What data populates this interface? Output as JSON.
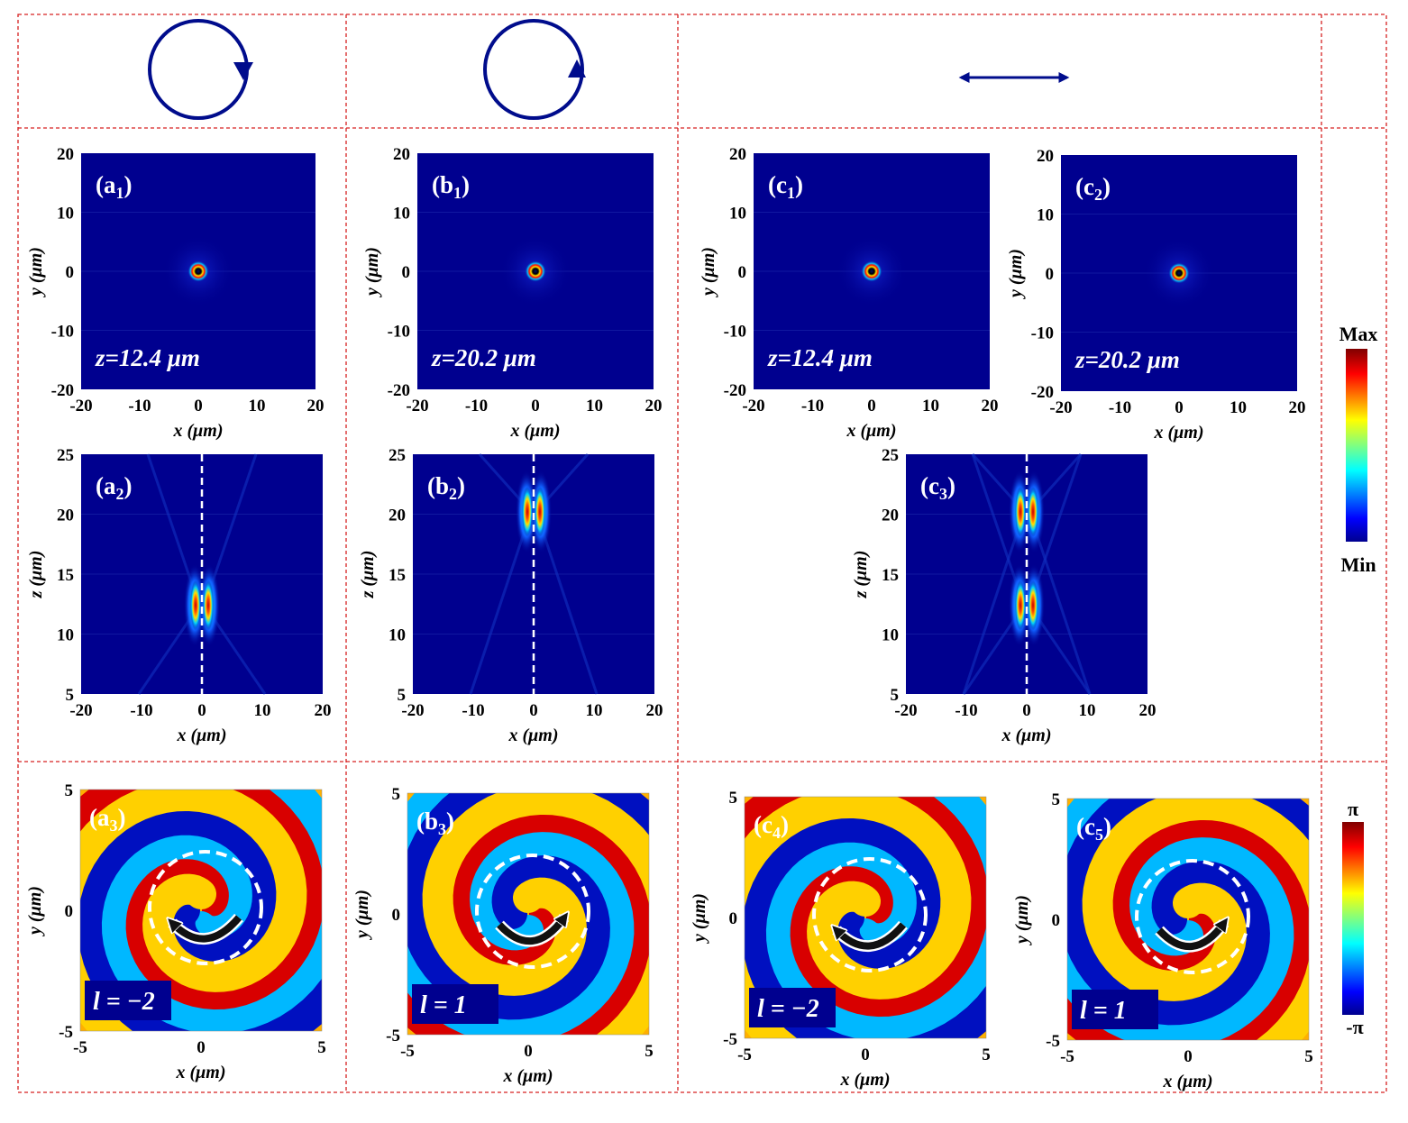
{
  "figure": {
    "column_headers": [
      {
        "polarization": "circular",
        "icon": "circle-arrow-down-icon"
      },
      {
        "polarization": "circular",
        "icon": "circle-arrow-up-icon"
      },
      {
        "polarization": "linear-x",
        "icon": "double-arrow-horizontal-icon"
      }
    ],
    "colors": {
      "border": "#d62020",
      "panel_bg": "#00008f",
      "polarization_icon": "#000c8c",
      "beam_guide": "#ffffff"
    }
  },
  "chart_data": [
    {
      "id": "a1",
      "type": "heatmap",
      "quantity": "intensity",
      "label_main": "(a",
      "label_sub": "1",
      "label_close": ")",
      "annotation": "z=12.4 μm",
      "xlabel": "x (μm)",
      "ylabel": "y (μm)",
      "xlim": [
        -20,
        20
      ],
      "ylim": [
        -20,
        20
      ],
      "xticks": [
        "-20",
        "-10",
        "0",
        "10",
        "20"
      ],
      "yticks": [
        "20",
        "10",
        "0",
        "-10",
        "-20"
      ],
      "features": [
        {
          "kind": "focal-ring",
          "x": 0,
          "y": 0
        }
      ]
    },
    {
      "id": "b1",
      "type": "heatmap",
      "quantity": "intensity",
      "label_main": "(b",
      "label_sub": "1",
      "label_close": ")",
      "annotation": "z=20.2 μm",
      "xlabel": "x (μm)",
      "ylabel": "y (μm)",
      "xlim": [
        -20,
        20
      ],
      "ylim": [
        -20,
        20
      ],
      "xticks": [
        "-20",
        "-10",
        "0",
        "10",
        "20"
      ],
      "yticks": [
        "20",
        "10",
        "0",
        "-10",
        "-20"
      ],
      "features": [
        {
          "kind": "focal-ring",
          "x": 0,
          "y": 0
        }
      ]
    },
    {
      "id": "c1",
      "type": "heatmap",
      "quantity": "intensity",
      "label_main": "(c",
      "label_sub": "1",
      "label_close": ")",
      "annotation": "z=12.4 μm",
      "xlabel": "x (μm)",
      "ylabel": "y (μm)",
      "xlim": [
        -20,
        20
      ],
      "ylim": [
        -20,
        20
      ],
      "xticks": [
        "-20",
        "-10",
        "0",
        "10",
        "20"
      ],
      "yticks": [
        "20",
        "10",
        "0",
        "-10",
        "-20"
      ],
      "features": [
        {
          "kind": "focal-ring",
          "x": 0,
          "y": 0
        }
      ]
    },
    {
      "id": "c2",
      "type": "heatmap",
      "quantity": "intensity",
      "label_main": "(c",
      "label_sub": "2",
      "label_close": ")",
      "annotation": "z=20.2 μm",
      "xlabel": "x (μm)",
      "ylabel": "y (μm)",
      "xlim": [
        -20,
        20
      ],
      "ylim": [
        -20,
        20
      ],
      "xticks": [
        "-20",
        "-10",
        "0",
        "10",
        "20"
      ],
      "yticks": [
        "20",
        "10",
        "0",
        "-10",
        "-20"
      ],
      "features": [
        {
          "kind": "focal-ring",
          "x": 0,
          "y": 0
        }
      ]
    },
    {
      "id": "a2",
      "type": "heatmap",
      "quantity": "intensity",
      "label_main": "(a",
      "label_sub": "2",
      "label_close": ")",
      "xlabel": "x (μm)",
      "ylabel": "z (μm)",
      "xlim": [
        -20,
        20
      ],
      "ylim": [
        5,
        25
      ],
      "xticks": [
        "-20",
        "-10",
        "0",
        "10",
        "20"
      ],
      "yticks": [
        "25",
        "20",
        "15",
        "10",
        "5"
      ],
      "features": [
        {
          "kind": "focus",
          "z": 12.4
        }
      ],
      "guide_x": 0
    },
    {
      "id": "b2",
      "type": "heatmap",
      "quantity": "intensity",
      "label_main": "(b",
      "label_sub": "2",
      "label_close": ")",
      "xlabel": "x (μm)",
      "ylabel": "z (μm)",
      "xlim": [
        -20,
        20
      ],
      "ylim": [
        5,
        25
      ],
      "xticks": [
        "-20",
        "-10",
        "0",
        "10",
        "20"
      ],
      "yticks": [
        "25",
        "20",
        "15",
        "10",
        "5"
      ],
      "features": [
        {
          "kind": "focus",
          "z": 20.2
        }
      ],
      "guide_x": 0
    },
    {
      "id": "c3",
      "type": "heatmap",
      "quantity": "intensity",
      "label_main": "(c",
      "label_sub": "3",
      "label_close": ")",
      "xlabel": "x (μm)",
      "ylabel": "z (μm)",
      "xlim": [
        -20,
        20
      ],
      "ylim": [
        5,
        25
      ],
      "xticks": [
        "-20",
        "-10",
        "0",
        "10",
        "20"
      ],
      "yticks": [
        "25",
        "20",
        "15",
        "10",
        "5"
      ],
      "features": [
        {
          "kind": "focus",
          "z": 12.4
        },
        {
          "kind": "focus",
          "z": 20.2
        }
      ],
      "guide_x": 0
    },
    {
      "id": "a3",
      "type": "heatmap",
      "quantity": "phase",
      "label_main": "(a",
      "label_sub": "3",
      "label_close": ")",
      "charge": "l = −2",
      "xlabel": "x (μm)",
      "ylabel": "y (μm)",
      "xlim": [
        -5,
        5
      ],
      "ylim": [
        -5,
        5
      ],
      "xticks": [
        "-5",
        "0",
        "5"
      ],
      "yticks": [
        "5",
        "0",
        "-5"
      ],
      "topological_charge": -2
    },
    {
      "id": "b3",
      "type": "heatmap",
      "quantity": "phase",
      "label_main": "(b",
      "label_sub": "3",
      "label_close": ")",
      "charge": "l = 1",
      "xlabel": "x (μm)",
      "ylabel": "y (μm)",
      "xlim": [
        -5,
        5
      ],
      "ylim": [
        -5,
        5
      ],
      "xticks": [
        "-5",
        "0",
        "5"
      ],
      "yticks": [
        "5",
        "0",
        "-5"
      ],
      "topological_charge": 1
    },
    {
      "id": "c4",
      "type": "heatmap",
      "quantity": "phase",
      "label_main": "(c",
      "label_sub": "4",
      "label_close": ")",
      "charge": "l = −2",
      "xlabel": "x (μm)",
      "ylabel": "y (μm)",
      "xlim": [
        -5,
        5
      ],
      "ylim": [
        -5,
        5
      ],
      "xticks": [
        "-5",
        "0",
        "5"
      ],
      "yticks": [
        "5",
        "0",
        "-5"
      ],
      "topological_charge": -2
    },
    {
      "id": "c5",
      "type": "heatmap",
      "quantity": "phase",
      "label_main": "(c",
      "label_sub": "5",
      "label_close": ")",
      "charge": "l = 1",
      "xlabel": "x (μm)",
      "ylabel": "y (μm)",
      "xlim": [
        -5,
        5
      ],
      "ylim": [
        -5,
        5
      ],
      "xticks": [
        "-5",
        "0",
        "5"
      ],
      "yticks": [
        "5",
        "0",
        "-5"
      ],
      "topological_charge": 1
    }
  ],
  "colorbars": {
    "intensity": {
      "max_label": "Max",
      "min_label": "Min"
    },
    "phase": {
      "max_label": "π",
      "min_label": "-π"
    }
  }
}
